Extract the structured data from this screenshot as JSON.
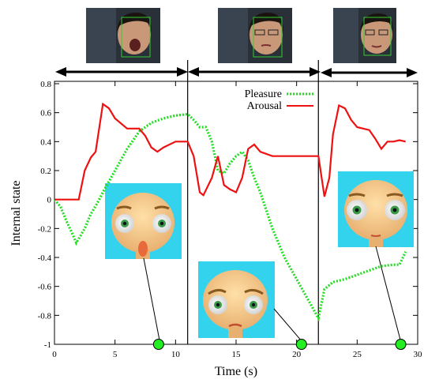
{
  "chart_data": {
    "type": "line",
    "title": "",
    "xlabel": "Time (s)",
    "ylabel": "Internal state",
    "xlim": [
      0,
      30
    ],
    "ylim": [
      -1,
      0.85
    ],
    "x_ticks": [
      0,
      5,
      10,
      15,
      20,
      25,
      30
    ],
    "x_tick_labels": [
      "0",
      "5",
      "10",
      "15",
      "20",
      "25",
      "30"
    ],
    "y_ticks": [
      -1,
      -0.8,
      -0.6,
      -0.4,
      -0.2,
      0,
      0.2,
      0.4,
      0.6,
      0.8
    ],
    "y_tick_labels": [
      "-1",
      "-0.8",
      "-0.6",
      "-0.4",
      "-0.2",
      "0",
      "0.2",
      "0.4",
      "0.6",
      "0.8"
    ],
    "grid": false,
    "legend_position": "top-center",
    "segment_boundaries": [
      11,
      21.8
    ],
    "series": [
      {
        "name": "Pleasure",
        "color": "#22dd22",
        "style": "dotted",
        "points": [
          [
            0,
            0
          ],
          [
            0.5,
            -0.05
          ],
          [
            1,
            -0.15
          ],
          [
            1.5,
            -0.24
          ],
          [
            1.8,
            -0.3
          ],
          [
            2.5,
            -0.2
          ],
          [
            3,
            -0.1
          ],
          [
            3.5,
            -0.03
          ],
          [
            4,
            0.05
          ],
          [
            5,
            0.2
          ],
          [
            6,
            0.35
          ],
          [
            7,
            0.47
          ],
          [
            8,
            0.53
          ],
          [
            9,
            0.56
          ],
          [
            10,
            0.58
          ],
          [
            11,
            0.59
          ],
          [
            11.5,
            0.55
          ],
          [
            12,
            0.5
          ],
          [
            12.5,
            0.5
          ],
          [
            13,
            0.4
          ],
          [
            13.5,
            0.2
          ],
          [
            14,
            0.18
          ],
          [
            14.5,
            0.25
          ],
          [
            15,
            0.3
          ],
          [
            15.5,
            0.33
          ],
          [
            16,
            0.27
          ],
          [
            16.5,
            0.15
          ],
          [
            17,
            0.05
          ],
          [
            18,
            -0.2
          ],
          [
            19,
            -0.4
          ],
          [
            20,
            -0.55
          ],
          [
            21,
            -0.7
          ],
          [
            21.8,
            -0.82
          ],
          [
            22.3,
            -0.62
          ],
          [
            23,
            -0.57
          ],
          [
            24,
            -0.55
          ],
          [
            25,
            -0.52
          ],
          [
            26,
            -0.49
          ],
          [
            27,
            -0.46
          ],
          [
            28,
            -0.45
          ],
          [
            28.5,
            -0.45
          ],
          [
            29,
            -0.36
          ]
        ]
      },
      {
        "name": "Arousal",
        "color": "#ee1111",
        "style": "solid",
        "points": [
          [
            0,
            0
          ],
          [
            1,
            0
          ],
          [
            2,
            0
          ],
          [
            2.5,
            0.2
          ],
          [
            3,
            0.29
          ],
          [
            3.4,
            0.33
          ],
          [
            4,
            0.66
          ],
          [
            4.5,
            0.63
          ],
          [
            5,
            0.56
          ],
          [
            6,
            0.49
          ],
          [
            7,
            0.49
          ],
          [
            7.5,
            0.44
          ],
          [
            8,
            0.36
          ],
          [
            8.5,
            0.33
          ],
          [
            9,
            0.36
          ],
          [
            10,
            0.4
          ],
          [
            11,
            0.4
          ],
          [
            11.5,
            0.3
          ],
          [
            12,
            0.05
          ],
          [
            12.3,
            0.03
          ],
          [
            13,
            0.15
          ],
          [
            13.5,
            0.3
          ],
          [
            14,
            0.1
          ],
          [
            14.5,
            0.07
          ],
          [
            15,
            0.05
          ],
          [
            15.5,
            0.15
          ],
          [
            16,
            0.35
          ],
          [
            16.5,
            0.38
          ],
          [
            17,
            0.33
          ],
          [
            18,
            0.3
          ],
          [
            19,
            0.3
          ],
          [
            20,
            0.3
          ],
          [
            21.8,
            0.3
          ],
          [
            22.3,
            0.02
          ],
          [
            22.7,
            0.15
          ],
          [
            23,
            0.45
          ],
          [
            23.5,
            0.65
          ],
          [
            24,
            0.63
          ],
          [
            24.5,
            0.55
          ],
          [
            25,
            0.5
          ],
          [
            26,
            0.48
          ],
          [
            26.5,
            0.42
          ],
          [
            27,
            0.35
          ],
          [
            27.5,
            0.4
          ],
          [
            28,
            0.4
          ],
          [
            28.5,
            0.41
          ],
          [
            29,
            0.4
          ]
        ]
      }
    ],
    "markers": [
      {
        "x": 8.6,
        "y": -1
      },
      {
        "x": 20.4,
        "y": -1
      },
      {
        "x": 28.6,
        "y": -1
      }
    ]
  }
}
